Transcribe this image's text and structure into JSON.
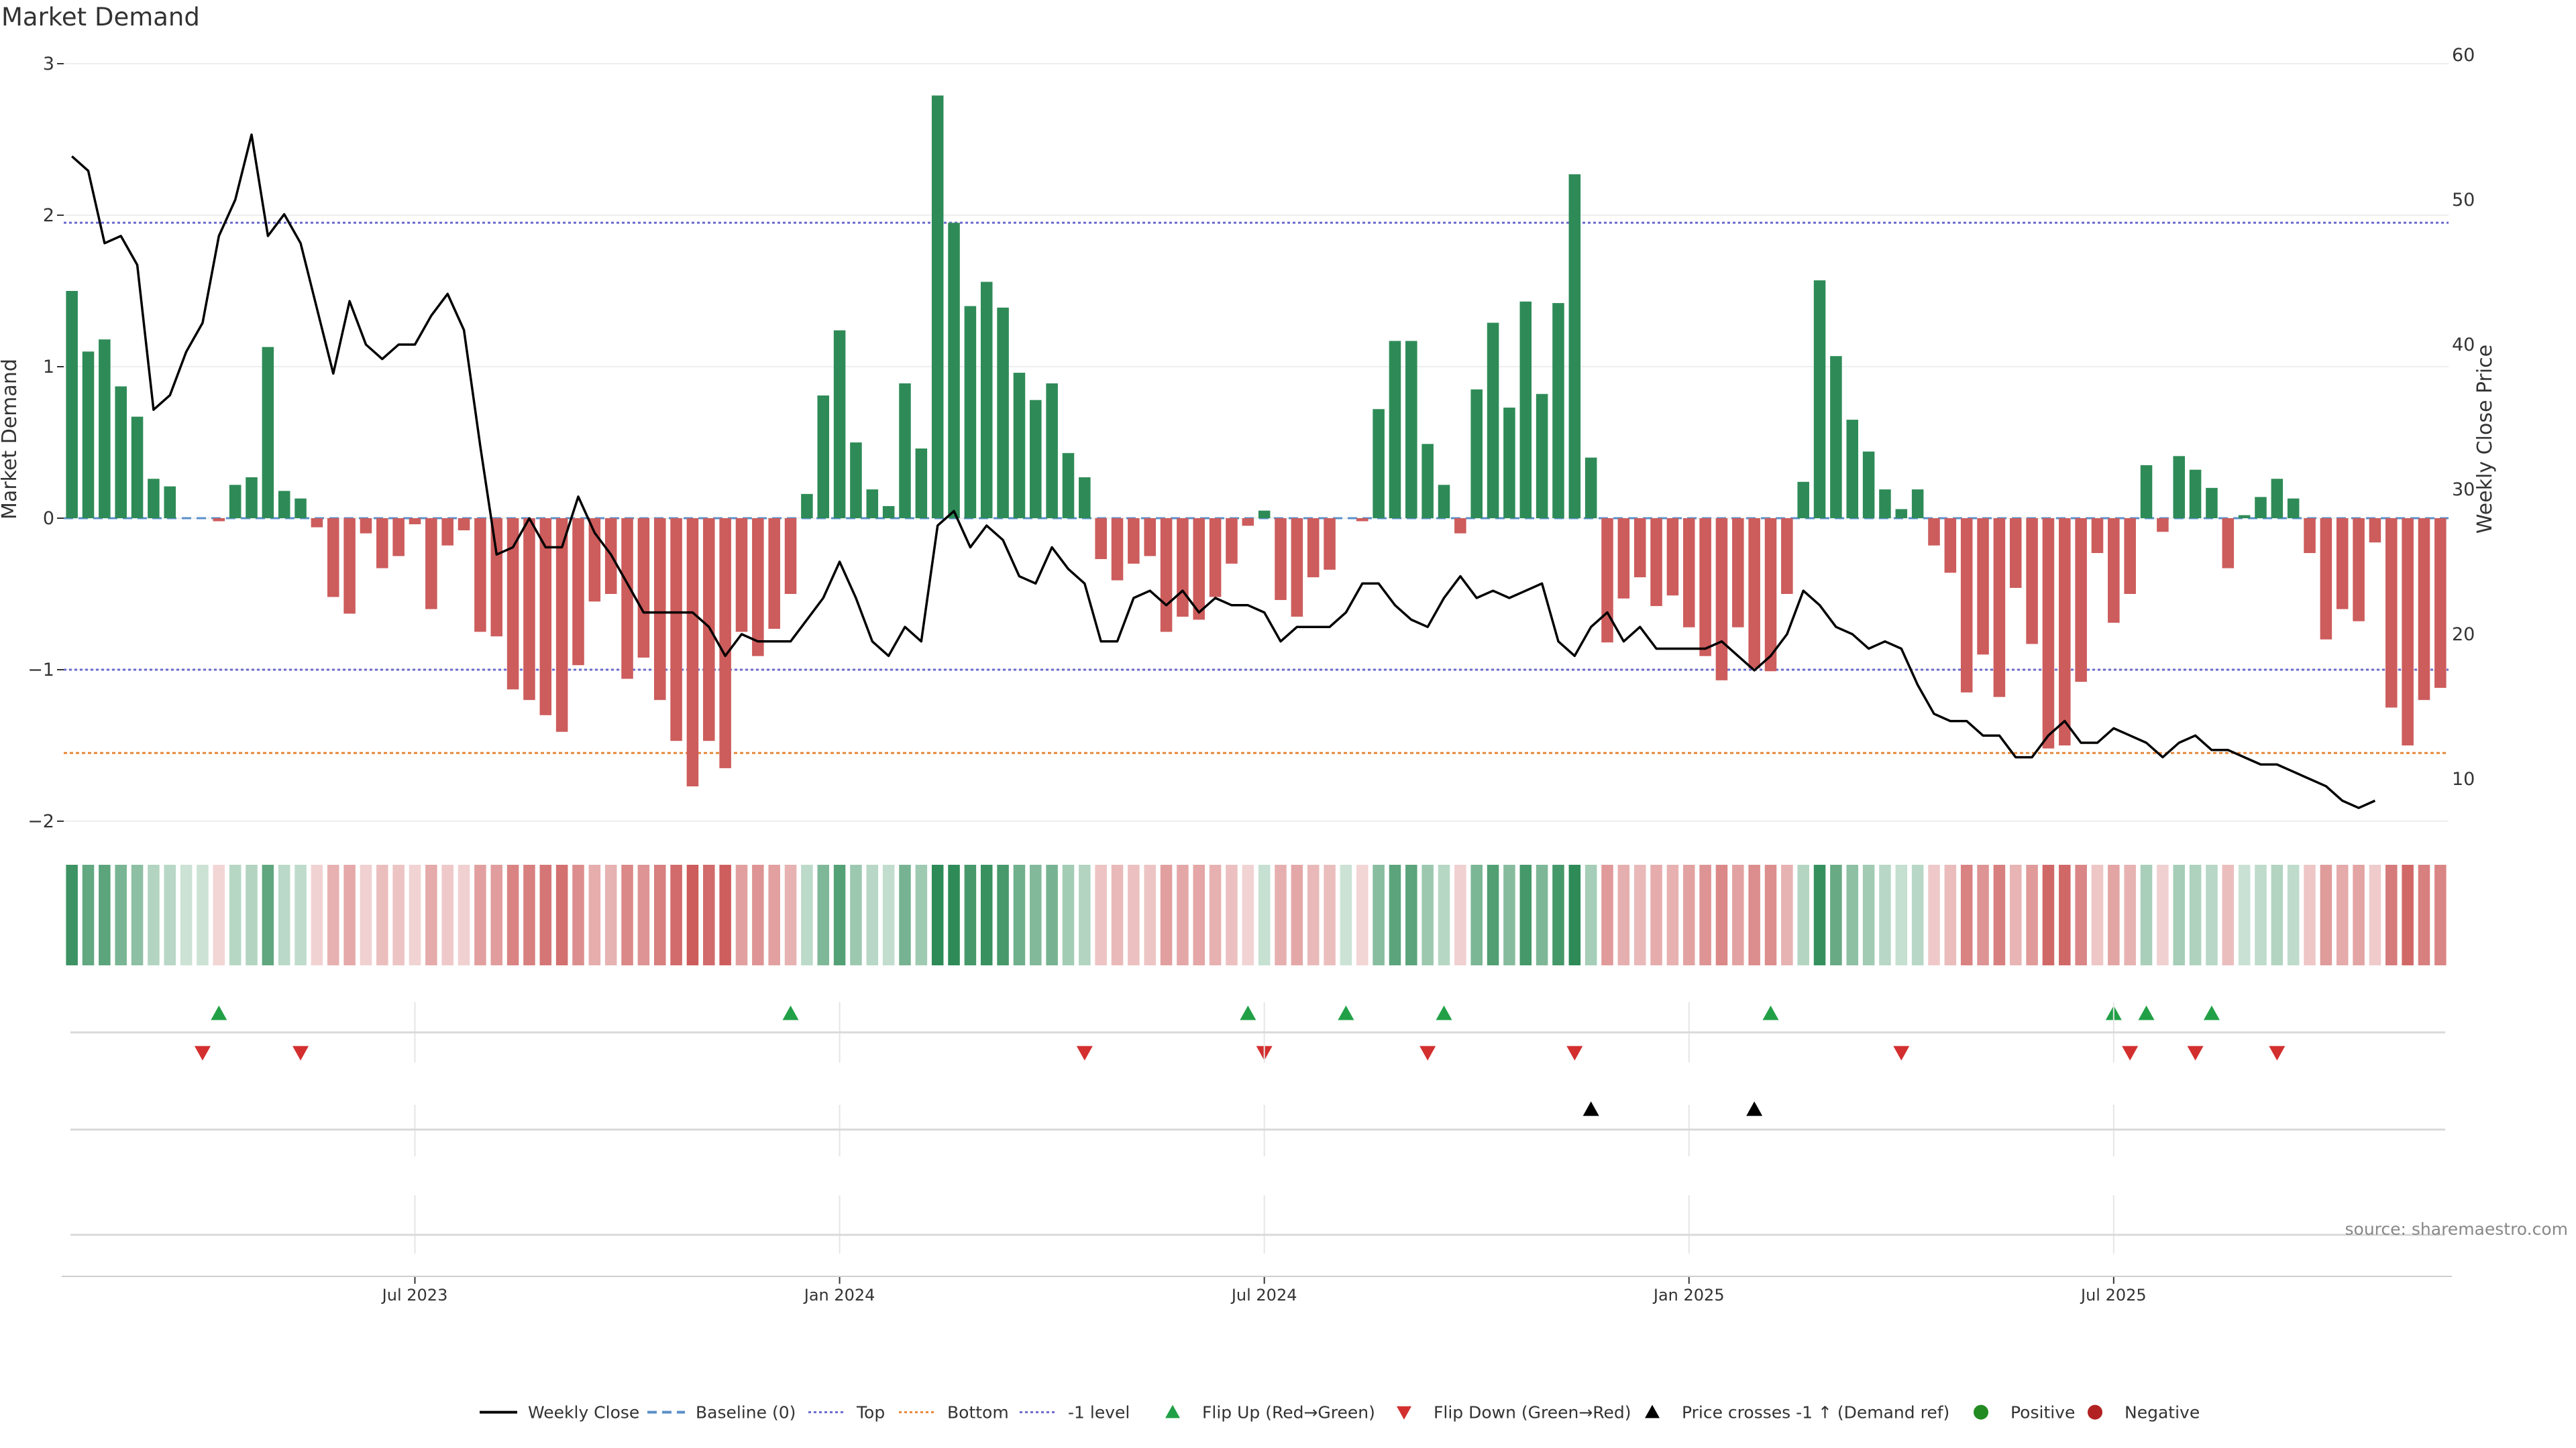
{
  "chart_data": {
    "type": "bar",
    "title": "Market Demand",
    "ylabel": "Market Demand",
    "y2label": "Weekly Close Price",
    "ylim": [
      -2.2,
      3
    ],
    "y2lim": [
      6.5,
      60
    ],
    "yticks": [
      3,
      2,
      1,
      0,
      -1,
      -2
    ],
    "y2ticks": [
      60,
      50,
      40,
      30,
      20,
      10
    ],
    "xticks": [
      "Jul 2023",
      "Jan 2024",
      "Jul 2024",
      "Jan 2025",
      "Jul 2025"
    ],
    "source": "source: sharemaestro.com",
    "reference_lines": {
      "baseline": 0,
      "top": 1.95,
      "bottom": -1.55,
      "minus_one": -1
    },
    "demand": [
      1.5,
      1.1,
      1.18,
      0.87,
      0.67,
      0.26,
      0.21,
      0,
      0,
      -0.02,
      0.22,
      0.27,
      1.13,
      0.18,
      0.13,
      -0.06,
      -0.52,
      -0.63,
      -0.1,
      -0.33,
      -0.25,
      -0.04,
      -0.6,
      -0.18,
      -0.08,
      -0.75,
      -0.78,
      -1.13,
      -1.2,
      -1.3,
      -1.41,
      -0.97,
      -0.55,
      -0.5,
      -1.06,
      -0.92,
      -1.2,
      -1.47,
      -1.77,
      -1.47,
      -1.65,
      -0.75,
      -0.91,
      -0.73,
      -0.5,
      0.16,
      0.81,
      1.24,
      0.5,
      0.19,
      0.08,
      0.89,
      0.46,
      2.79,
      1.95,
      1.4,
      1.56,
      1.39,
      0.96,
      0.78,
      0.89,
      0.43,
      0.27,
      -0.27,
      -0.41,
      -0.3,
      -0.25,
      -0.75,
      -0.65,
      -0.67,
      -0.52,
      -0.3,
      -0.05,
      0.05,
      -0.54,
      -0.65,
      -0.39,
      -0.34,
      0,
      -0.02,
      0.72,
      1.17,
      1.17,
      0.49,
      0.22,
      -0.1,
      0.85,
      1.29,
      0.73,
      1.43,
      0.82,
      1.42,
      2.27,
      0.4,
      -0.82,
      -0.53,
      -0.39,
      -0.58,
      -0.51,
      -0.72,
      -0.91,
      -1.07,
      -0.72,
      -0.99,
      -1.01,
      -0.5,
      0.24,
      1.57,
      1.07,
      0.65,
      0.44,
      0.19,
      0.06,
      0.19,
      -0.18,
      -0.36,
      -1.15,
      -0.9,
      -1.18,
      -0.46,
      -0.83,
      -1.52,
      -1.5,
      -1.08,
      -0.23,
      -0.69,
      -0.5,
      0.35,
      -0.09,
      0.41,
      0.32,
      0.2,
      -0.33,
      0.02,
      0.14,
      0.26,
      0.13,
      -0.23,
      -0.8,
      -0.6,
      -0.68,
      -0.16,
      -1.25,
      -1.5,
      -1.2,
      -1.12
    ],
    "price": [
      53,
      52,
      47,
      47.5,
      45.5,
      35.5,
      36.5,
      39.5,
      41.5,
      47.5,
      50,
      54.5,
      47.5,
      49,
      47,
      42.5,
      38,
      43,
      40,
      39,
      40,
      40,
      42,
      43.5,
      41,
      33,
      25.5,
      26,
      28,
      26,
      26,
      29.5,
      27,
      25.5,
      23.5,
      21.5,
      21.5,
      21.5,
      21.5,
      20.5,
      18.5,
      20,
      19.5,
      19.5,
      19.5,
      21,
      22.5,
      25,
      22.5,
      19.5,
      18.5,
      20.5,
      19.5,
      27.5,
      28.5,
      26,
      27.5,
      26.5,
      24,
      23.5,
      26,
      24.5,
      23.5,
      19.5,
      19.5,
      22.5,
      23,
      22,
      23,
      21.5,
      22.5,
      22,
      22,
      21.5,
      19.5,
      20.5,
      20.5,
      20.5,
      21.5,
      23.5,
      23.5,
      22,
      21,
      20.5,
      22.5,
      24,
      22.5,
      23,
      22.5,
      23,
      23.5,
      19.5,
      18.5,
      20.5,
      21.5,
      19.5,
      20.5,
      19,
      19,
      19,
      19,
      19.5,
      18.5,
      17.5,
      18.5,
      20,
      23,
      22,
      20.5,
      20,
      19,
      19.5,
      19,
      16.5,
      14.5,
      14,
      14,
      13,
      13,
      11.5,
      11.5,
      13,
      14,
      12.5,
      12.5,
      13.5,
      13,
      12.5,
      11.5,
      12.5,
      13,
      12,
      12,
      11.5,
      11,
      11,
      10.5,
      10,
      9.5,
      8.5,
      8,
      8.5
    ],
    "markers": {
      "flip_up": [
        9,
        44,
        72,
        78,
        84,
        104,
        125,
        127,
        131
      ],
      "flip_down": [
        8,
        14,
        62,
        73,
        83,
        92,
        112,
        126,
        130,
        135
      ],
      "price_cross": [
        93,
        103
      ]
    },
    "legend": [
      "Weekly Close",
      "Baseline (0)",
      "Top",
      "Bottom",
      "-1 level",
      "Flip Up (Red→Green)",
      "Flip Down (Green→Red)",
      "Price crosses -1 ↑ (Demand ref)",
      "Positive",
      "Negative"
    ],
    "colors": {
      "positive": "#2e8b57",
      "negative": "#cd5c5c",
      "price": "#000000",
      "top": "#6a6acd",
      "bottom": "#e8883a",
      "minus_one": "#6a6acd",
      "flip_up": "#22a047",
      "flip_down": "#d32f2f",
      "price_cross": "#000000",
      "legend_positive": "#228b22",
      "legend_negative": "#b22222"
    }
  }
}
